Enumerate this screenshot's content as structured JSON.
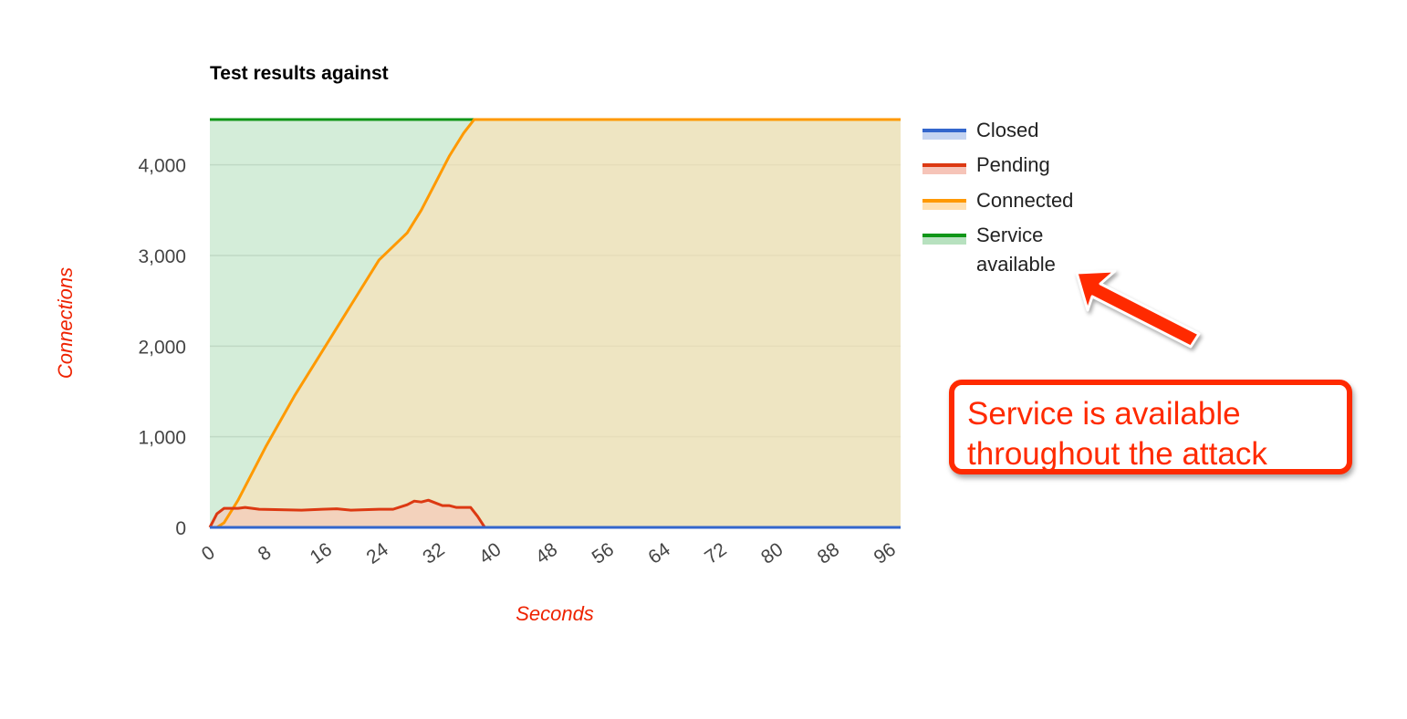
{
  "chart_data": {
    "type": "area",
    "title": "Test results against",
    "xlabel": "Seconds",
    "ylabel": "Connections",
    "xlim": [
      0,
      98
    ],
    "ylim": [
      0,
      4500
    ],
    "x_ticks": [
      "0",
      "8",
      "16",
      "24",
      "32",
      "40",
      "48",
      "56",
      "64",
      "72",
      "80",
      "88",
      "96"
    ],
    "y_ticks": [
      "0",
      "1,000",
      "2,000",
      "3,000",
      "4,000"
    ],
    "grid": true,
    "legend_position": "right",
    "series": [
      {
        "name": "Closed",
        "color": "#3366cc",
        "fill": "#c5d4f1",
        "points": [
          [
            0,
            0
          ],
          [
            98,
            0
          ]
        ]
      },
      {
        "name": "Pending",
        "color": "#dc3912",
        "fill": "#f6c4b8",
        "points": [
          [
            0,
            0
          ],
          [
            1,
            150
          ],
          [
            2,
            210
          ],
          [
            4,
            210
          ],
          [
            5,
            220
          ],
          [
            7,
            200
          ],
          [
            10,
            195
          ],
          [
            13,
            190
          ],
          [
            16,
            200
          ],
          [
            18,
            205
          ],
          [
            20,
            190
          ],
          [
            24,
            200
          ],
          [
            26,
            200
          ],
          [
            28,
            250
          ],
          [
            29,
            290
          ],
          [
            30,
            280
          ],
          [
            31,
            300
          ],
          [
            32,
            270
          ],
          [
            33,
            240
          ],
          [
            34,
            240
          ],
          [
            35,
            220
          ],
          [
            37,
            220
          ],
          [
            38,
            120
          ],
          [
            39,
            0
          ],
          [
            98,
            0
          ]
        ]
      },
      {
        "name": "Connected",
        "color": "#ff9900",
        "fill": "#ffe0b2",
        "points": [
          [
            0,
            0
          ],
          [
            1,
            0
          ],
          [
            2,
            50
          ],
          [
            4,
            300
          ],
          [
            8,
            900
          ],
          [
            12,
            1450
          ],
          [
            16,
            1950
          ],
          [
            20,
            2450
          ],
          [
            24,
            2950
          ],
          [
            28,
            3250
          ],
          [
            30,
            3500
          ],
          [
            32,
            3800
          ],
          [
            34,
            4100
          ],
          [
            36,
            4350
          ],
          [
            37.5,
            4500
          ],
          [
            98,
            4500
          ]
        ]
      },
      {
        "name": "Service available",
        "color": "#109618",
        "fill": "#b7e1bf",
        "points": [
          [
            0,
            4500
          ],
          [
            98,
            4500
          ]
        ]
      }
    ]
  },
  "legend": [
    {
      "label_line1": "Closed",
      "label_line2": ""
    },
    {
      "label_line1": "Pending",
      "label_line2": ""
    },
    {
      "label_line1": "Connected",
      "label_line2": ""
    },
    {
      "label_line1": "Service",
      "label_line2": "available"
    }
  ],
  "annotation": {
    "line1": "Service is available",
    "line2": "throughout the attack",
    "color": "#ff2a00"
  }
}
